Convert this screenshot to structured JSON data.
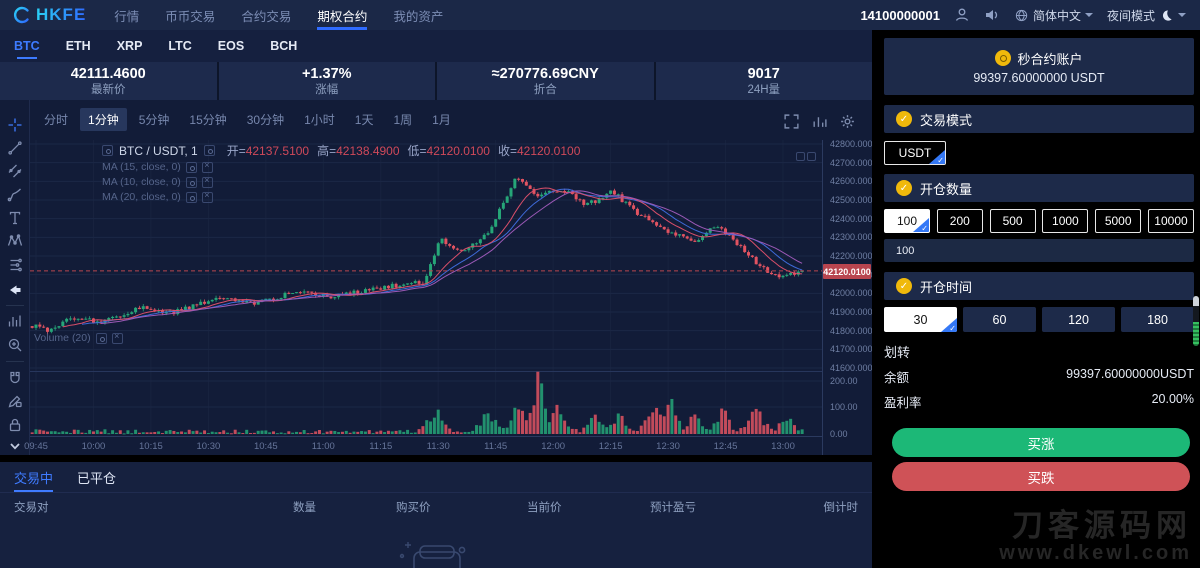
{
  "navbar": {
    "logo_text": "HKFE",
    "menu": [
      {
        "id": "market",
        "label": "行情",
        "active": false
      },
      {
        "id": "spot",
        "label": "币币交易",
        "active": false
      },
      {
        "id": "futures",
        "label": "合约交易",
        "active": false
      },
      {
        "id": "options",
        "label": "期权合约",
        "active": true
      },
      {
        "id": "assets",
        "label": "我的资产",
        "active": false
      }
    ],
    "account_id": "14100000001",
    "language_label": "简体中文",
    "theme_label": "夜间模式"
  },
  "coin_tabs": [
    {
      "id": "btc",
      "label": "BTC",
      "active": true
    },
    {
      "id": "eth",
      "label": "ETH",
      "active": false
    },
    {
      "id": "xrp",
      "label": "XRP",
      "active": false
    },
    {
      "id": "ltc",
      "label": "LTC",
      "active": false
    },
    {
      "id": "eos",
      "label": "EOS",
      "active": false
    },
    {
      "id": "bch",
      "label": "BCH",
      "active": false
    }
  ],
  "stats": [
    {
      "value": "42111.4600",
      "label": "最新价"
    },
    {
      "value": "+1.37%",
      "label": "涨幅"
    },
    {
      "value": "≈270776.69CNY",
      "label": "折合"
    },
    {
      "value": "9017",
      "label": "24H量"
    }
  ],
  "chart": {
    "timeframes": [
      "分时",
      "1分钟",
      "5分钟",
      "15分钟",
      "30分钟",
      "1小时",
      "1天",
      "1周",
      "1月"
    ],
    "active_timeframe": "1分钟",
    "legend_symbol": "BTC / USDT, 1",
    "ohlc": [
      {
        "k": "开",
        "v": "42137.5100"
      },
      {
        "k": "高",
        "v": "42138.4900"
      },
      {
        "k": "低",
        "v": "42120.0100"
      },
      {
        "k": "收",
        "v": "42120.0100"
      }
    ],
    "ma_labels": [
      "MA (15, close, 0)",
      "MA (10, close, 0)",
      "MA (20, close, 0)"
    ],
    "volume_label": "Volume (20)",
    "price_ticks": [
      "42800.0000",
      "42700.0000",
      "42600.0000",
      "42500.0000",
      "42400.0000",
      "42300.0000",
      "42200.0000",
      "42100.0000",
      "42000.0000",
      "41900.0000",
      "41800.0000",
      "41700.0000",
      "41600.0000"
    ],
    "volume_ticks": [
      "200.00",
      "100.00",
      "0.00"
    ],
    "time_ticks": [
      "09:45",
      "10:00",
      "10:15",
      "10:30",
      "10:45",
      "11:00",
      "11:15",
      "11:30",
      "11:45",
      "12:00",
      "12:15",
      "12:30",
      "12:45",
      "13:00"
    ],
    "current_price": "42120.0100",
    "toolbar_icons": [
      "crosshair-icon",
      "trend-line-icon",
      "parallel-channel-icon",
      "brush-icon",
      "text-icon",
      "xabcd-pattern-icon",
      "forecast-icon",
      "arrow-left-icon",
      "measure-icon",
      "zoom-in-icon",
      "magnet-icon",
      "drawing-lock-icon",
      "lock-icon",
      "chevron-down-icon"
    ],
    "topright_icons": [
      "fullscreen-icon",
      "indicators-icon",
      "gear-icon"
    ]
  },
  "chart_data": {
    "type": "candlestick",
    "symbol": "BTC/USDT",
    "interval_minutes": 1,
    "time_range": [
      "09:43",
      "13:05"
    ],
    "price_range": [
      41600,
      42800
    ],
    "volume_range": [
      0,
      200
    ],
    "last_price": 42120.01,
    "price_path_anchors": [
      [
        -2,
        41840
      ],
      [
        3,
        41800
      ],
      [
        10,
        41865
      ],
      [
        18,
        41845
      ],
      [
        28,
        41925
      ],
      [
        36,
        41895
      ],
      [
        48,
        41975
      ],
      [
        58,
        41945
      ],
      [
        68,
        42005
      ],
      [
        78,
        41985
      ],
      [
        93,
        42040
      ],
      [
        102,
        42060
      ],
      [
        106,
        42290
      ],
      [
        111,
        42225
      ],
      [
        118,
        42310
      ],
      [
        126,
        42630
      ],
      [
        131,
        42520
      ],
      [
        138,
        42560
      ],
      [
        144,
        42470
      ],
      [
        151,
        42545
      ],
      [
        158,
        42420
      ],
      [
        166,
        42330
      ],
      [
        173,
        42280
      ],
      [
        178,
        42370
      ],
      [
        184,
        42255
      ],
      [
        190,
        42135
      ],
      [
        195,
        42085
      ],
      [
        200,
        42120
      ]
    ],
    "volume_spikes": [
      [
        104,
        70,
        2
      ],
      [
        118,
        60,
        2
      ],
      [
        126,
        90,
        1.5
      ],
      [
        131,
        215,
        1.2
      ],
      [
        136,
        70,
        2
      ],
      [
        146,
        50,
        1.5
      ],
      [
        152,
        60,
        1.5
      ],
      [
        161,
        95,
        1.6
      ],
      [
        166,
        110,
        1.4
      ],
      [
        172,
        55,
        1.5
      ],
      [
        179,
        70,
        1.5
      ],
      [
        188,
        60,
        1.8
      ],
      [
        196,
        45,
        1.5
      ]
    ],
    "ma": [
      {
        "period": 15,
        "color": "#3e6ad8"
      },
      {
        "period": 10,
        "color": "#d94f6a"
      },
      {
        "period": 20,
        "color": "#9b59b6"
      }
    ],
    "colors": {
      "up": "#26a678",
      "down": "#e25361",
      "tag": "#b8454f"
    }
  },
  "trade_panel": {
    "account_title": "秒合约账户",
    "account_balance": "99397.60000000 USDT",
    "mode_title": "交易模式",
    "mode_selected": "USDT",
    "amount_title": "开仓数量",
    "amount_options": [
      "100",
      "200",
      "500",
      "1000",
      "5000",
      "10000"
    ],
    "amount_selected": "100",
    "amount_input_value": "100",
    "time_title": "开仓时间",
    "time_options": [
      "30",
      "60",
      "120",
      "180"
    ],
    "time_selected": "30",
    "transfer_label": "划转",
    "balance_label": "余额",
    "balance_value": "99397.60000000USDT",
    "profit_label": "盈利率",
    "profit_value": "20.00%",
    "buy_up_label": "买涨",
    "buy_down_label": "买跌"
  },
  "positions": {
    "tabs": [
      {
        "label": "交易中",
        "active": true
      },
      {
        "label": "已平仓",
        "active": false
      }
    ],
    "headers": [
      "交易对",
      "数量",
      "购买价",
      "当前价",
      "预计盈亏",
      "倒计时"
    ]
  },
  "watermark": {
    "line1": "刀客源码网",
    "line2": "www.dkewl.com"
  },
  "colors": {
    "accent": "#3d7bff",
    "green": "#1cb877",
    "red": "#cf5257",
    "yellow": "#f0b90b"
  }
}
